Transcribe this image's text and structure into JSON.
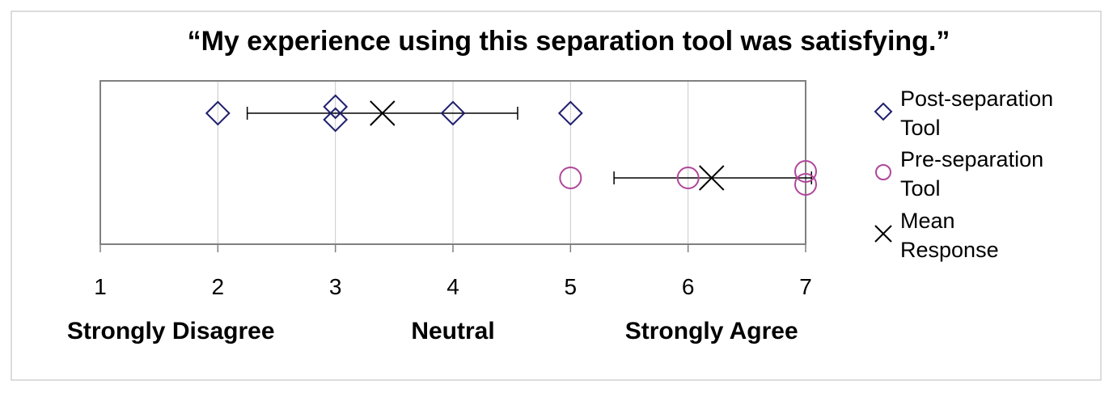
{
  "chart_data": {
    "type": "scatter",
    "title": "“My experience using this separation tool was satisfying.”",
    "xlim": [
      1,
      7
    ],
    "x_ticks": [
      "1",
      "2",
      "3",
      "4",
      "5",
      "6",
      "7"
    ],
    "scale_anchors": [
      {
        "label": "Strongly Disagree",
        "x": 1.6
      },
      {
        "label": "Neutral",
        "x": 4.0
      },
      {
        "label": "Strongly Agree",
        "x": 6.2
      }
    ],
    "grid": true,
    "legend_position": "right",
    "series": [
      {
        "name": "Post-separation Tool",
        "legend_lines": [
          "Post-separation",
          "Tool"
        ],
        "marker": "diamond",
        "color": "#1f1f6e",
        "points": [
          2,
          3,
          3,
          4,
          5
        ],
        "mean": 3.4,
        "error_low": 2.25,
        "error_high": 4.55
      },
      {
        "name": "Pre-separation Tool",
        "legend_lines": [
          "Pre-separation",
          "Tool"
        ],
        "marker": "circle",
        "color": "#b0479a",
        "points": [
          5,
          6,
          7,
          7
        ],
        "mean": 6.2,
        "error_low": 5.37,
        "error_high": 7.05
      }
    ],
    "mean_marker": {
      "name": "Mean Response",
      "legend_lines": [
        "Mean",
        "Response"
      ],
      "marker": "x",
      "color": "#000000"
    }
  }
}
